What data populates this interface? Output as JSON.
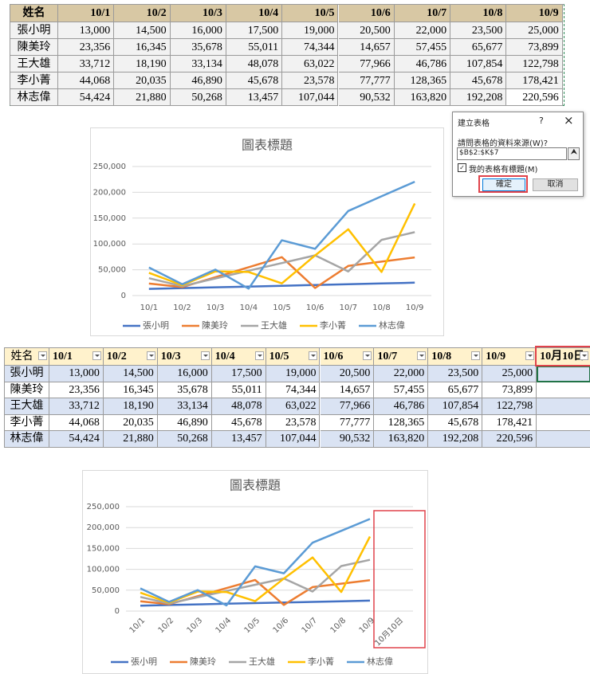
{
  "table1": {
    "header": [
      "姓名",
      "10/1",
      "10/2",
      "10/3",
      "10/4",
      "10/5",
      "10/6",
      "10/7",
      "10/8",
      "10/9"
    ],
    "rows": [
      [
        "張小明",
        "13,000",
        "14,500",
        "16,000",
        "17,500",
        "19,000",
        "20,500",
        "22,000",
        "23,500",
        "25,000"
      ],
      [
        "陳美玲",
        "23,356",
        "16,345",
        "35,678",
        "55,011",
        "74,344",
        "14,657",
        "57,455",
        "65,677",
        "73,899"
      ],
      [
        "王大雄",
        "33,712",
        "18,190",
        "33,134",
        "48,078",
        "63,022",
        "77,966",
        "46,786",
        "107,854",
        "122,798"
      ],
      [
        "李小菁",
        "44,068",
        "20,035",
        "46,890",
        "45,678",
        "23,578",
        "77,777",
        "128,365",
        "45,678",
        "178,421"
      ],
      [
        "林志偉",
        "54,424",
        "21,880",
        "50,268",
        "13,457",
        "107,044",
        "90,532",
        "163,820",
        "192,208",
        "220,596"
      ]
    ]
  },
  "dialog": {
    "title": "建立表格",
    "help": "?",
    "close": "×",
    "prompt": "請問表格的資料來源(W)?",
    "range": "$B$2:$K$7",
    "checkbox": "我的表格有標題(M)",
    "ok": "確定",
    "cancel": "取消"
  },
  "table2": {
    "header": [
      "姓名",
      "10/1",
      "10/2",
      "10/3",
      "10/4",
      "10/5",
      "10/6",
      "10/7",
      "10/8",
      "10/9",
      "10月10日"
    ],
    "rows": [
      [
        "張小明",
        "13,000",
        "14,500",
        "16,000",
        "17,500",
        "19,000",
        "20,500",
        "22,000",
        "23,500",
        "25,000"
      ],
      [
        "陳美玲",
        "23,356",
        "16,345",
        "35,678",
        "55,011",
        "74,344",
        "14,657",
        "57,455",
        "65,677",
        "73,899"
      ],
      [
        "王大雄",
        "33,712",
        "18,190",
        "33,134",
        "48,078",
        "63,022",
        "77,966",
        "46,786",
        "107,854",
        "122,798"
      ],
      [
        "李小菁",
        "44,068",
        "20,035",
        "46,890",
        "45,678",
        "23,578",
        "77,777",
        "128,365",
        "45,678",
        "178,421"
      ],
      [
        "林志偉",
        "54,424",
        "21,880",
        "50,268",
        "13,457",
        "107,044",
        "90,532",
        "163,820",
        "192,208",
        "220,596"
      ]
    ]
  },
  "chart_data": [
    {
      "type": "line",
      "title": "圖表標題",
      "categories": [
        "10/1",
        "10/2",
        "10/3",
        "10/4",
        "10/5",
        "10/6",
        "10/7",
        "10/8",
        "10/9"
      ],
      "ylim": [
        0,
        250000
      ],
      "yticks": [
        0,
        {
          "value": 50000,
          "label": "50,000"
        },
        {
          "value": 100000,
          "label": "100,000"
        },
        {
          "value": 150000,
          "label": "150,000"
        },
        {
          "value": 200000,
          "label": "200,000"
        },
        {
          "value": 250000,
          "label": "250,000"
        }
      ],
      "grid": true,
      "legend": "bottom",
      "series": [
        {
          "name": "張小明",
          "color": "#4472c4",
          "values": [
            13000,
            14500,
            16000,
            17500,
            19000,
            20500,
            22000,
            23500,
            25000
          ]
        },
        {
          "name": "陳美玲",
          "color": "#ed7d31",
          "values": [
            23356,
            16345,
            35678,
            55011,
            74344,
            14657,
            57455,
            65677,
            73899
          ]
        },
        {
          "name": "王大雄",
          "color": "#a5a5a5",
          "values": [
            33712,
            18190,
            33134,
            48078,
            63022,
            77966,
            46786,
            107854,
            122798
          ]
        },
        {
          "name": "李小菁",
          "color": "#ffc000",
          "values": [
            44068,
            20035,
            46890,
            45678,
            23578,
            77777,
            128365,
            45678,
            178421
          ]
        },
        {
          "name": "林志偉",
          "color": "#5b9bd5",
          "values": [
            54424,
            21880,
            50268,
            13457,
            107044,
            90532,
            163820,
            192208,
            220596
          ]
        }
      ]
    },
    {
      "type": "line",
      "title": "圖表標題",
      "categories": [
        "10/1",
        "10/2",
        "10/3",
        "10/4",
        "10/5",
        "10/6",
        "10/7",
        "10/8",
        "10/9",
        "10月10日"
      ],
      "ylim": [
        0,
        250000
      ],
      "yticks": [
        0,
        {
          "value": 50000,
          "label": "50,000"
        },
        {
          "value": 100000,
          "label": "100,000"
        },
        {
          "value": 150000,
          "label": "150,000"
        },
        {
          "value": 200000,
          "label": "200,000"
        },
        {
          "value": 250000,
          "label": "250,000"
        }
      ],
      "grid": true,
      "legend": "bottom",
      "series": [
        {
          "name": "張小明",
          "color": "#4472c4",
          "values": [
            13000,
            14500,
            16000,
            17500,
            19000,
            20500,
            22000,
            23500,
            25000,
            null
          ]
        },
        {
          "name": "陳美玲",
          "color": "#ed7d31",
          "values": [
            23356,
            16345,
            35678,
            55011,
            74344,
            14657,
            57455,
            65677,
            73899,
            null
          ]
        },
        {
          "name": "王大雄",
          "color": "#a5a5a5",
          "values": [
            33712,
            18190,
            33134,
            48078,
            63022,
            77966,
            46786,
            107854,
            122798,
            null
          ]
        },
        {
          "name": "李小菁",
          "color": "#ffc000",
          "values": [
            44068,
            20035,
            46890,
            45678,
            23578,
            77777,
            128365,
            45678,
            178421,
            null
          ]
        },
        {
          "name": "林志偉",
          "color": "#5b9bd5",
          "values": [
            54424,
            21880,
            50268,
            13457,
            107044,
            90532,
            163820,
            192208,
            220596,
            null
          ]
        }
      ]
    }
  ]
}
